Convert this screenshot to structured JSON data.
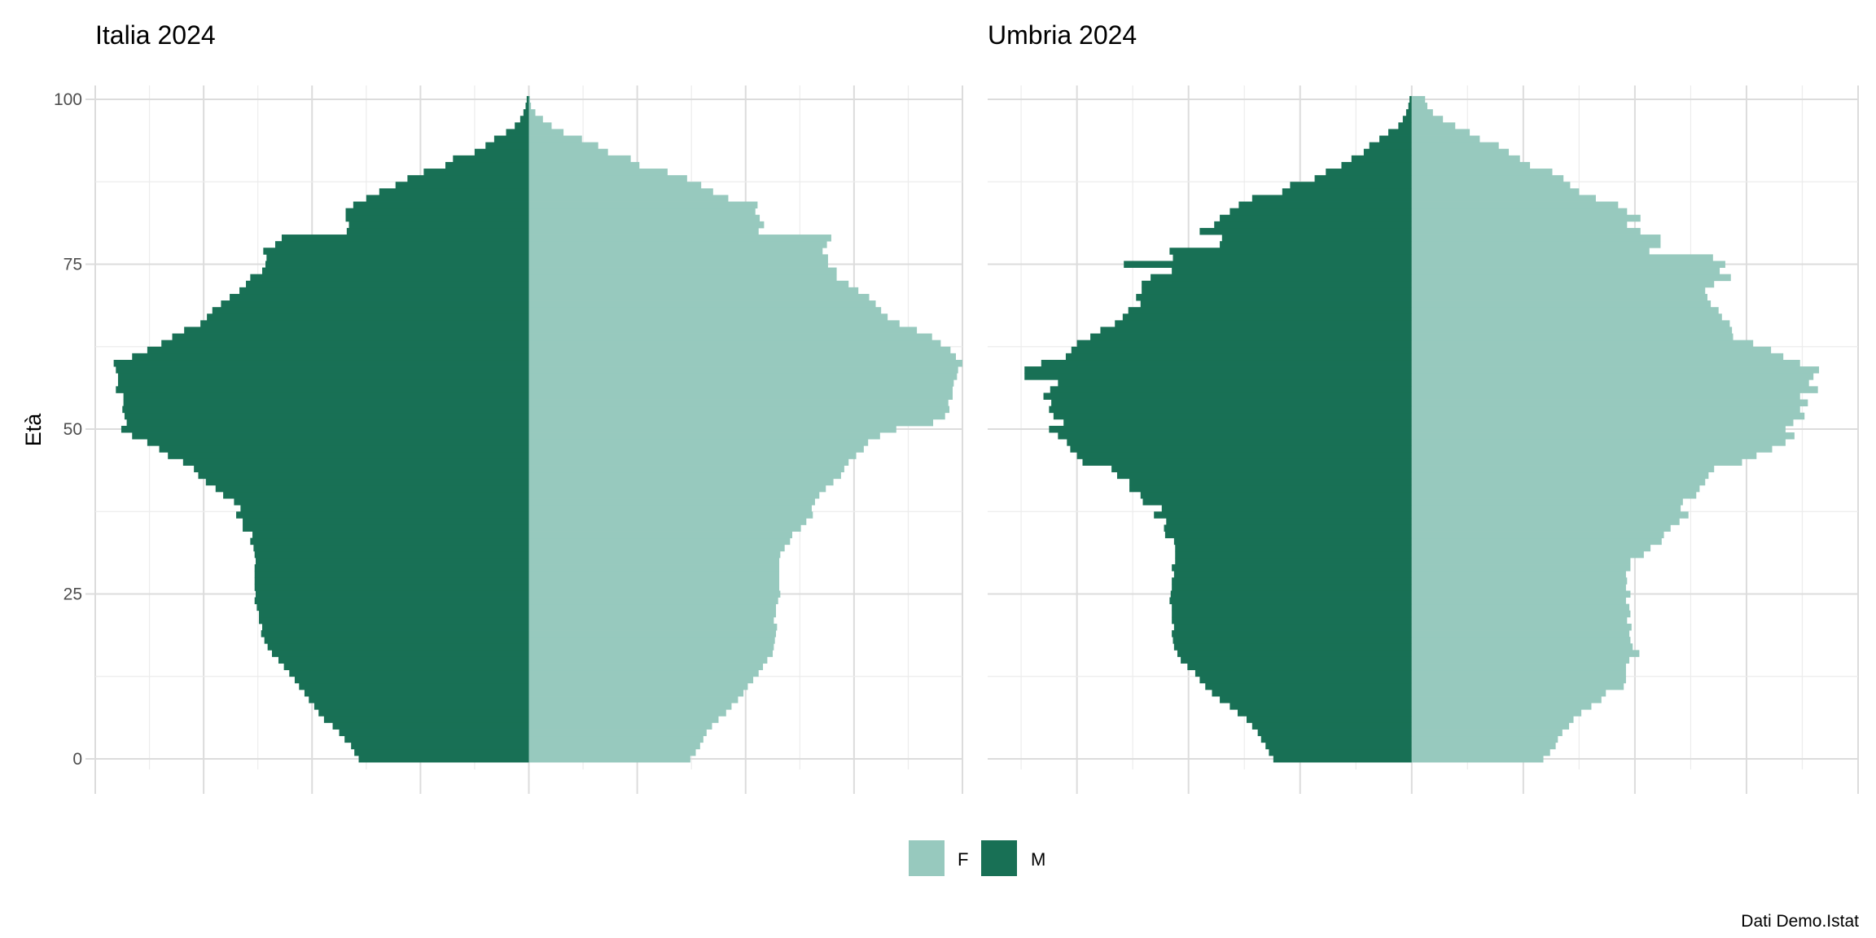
{
  "chart_data": {
    "type": "bar",
    "subtype": "population-pyramid",
    "y_axis_title": "Età",
    "y_ticks": [
      0,
      25,
      50,
      75,
      100
    ],
    "ylim": [
      0,
      100
    ],
    "x_axis_tick_labels_shown": false,
    "grid": true,
    "legend": {
      "placement": "bottom",
      "entries": [
        {
          "label": "F",
          "color": "#97c9be"
        },
        {
          "label": "M",
          "color": "#187055"
        }
      ]
    },
    "caption": "Dati Demo.Istat",
    "value_unit_note": "relative bar length per single year of age (shares of population, left = M, right = F); axis tick labels not printed",
    "panels": [
      {
        "title": "Italia 2024",
        "xlim": [
          -4,
          4
        ],
        "ages": {
          "from": 0,
          "to": 100
        },
        "M": [
          1.57,
          1.61,
          1.64,
          1.7,
          1.75,
          1.81,
          1.89,
          1.94,
          1.98,
          2.03,
          2.07,
          2.12,
          2.16,
          2.21,
          2.26,
          2.31,
          2.37,
          2.41,
          2.44,
          2.47,
          2.46,
          2.49,
          2.49,
          2.51,
          2.53,
          2.52,
          2.53,
          2.53,
          2.53,
          2.53,
          2.52,
          2.53,
          2.54,
          2.57,
          2.55,
          2.64,
          2.64,
          2.7,
          2.66,
          2.72,
          2.82,
          2.89,
          2.98,
          3.05,
          3.09,
          3.19,
          3.33,
          3.41,
          3.52,
          3.66,
          3.76,
          3.71,
          3.73,
          3.75,
          3.74,
          3.74,
          3.81,
          3.79,
          3.79,
          3.81,
          3.83,
          3.66,
          3.52,
          3.39,
          3.29,
          3.18,
          3.03,
          2.97,
          2.92,
          2.84,
          2.76,
          2.67,
          2.61,
          2.57,
          2.46,
          2.43,
          2.42,
          2.45,
          2.34,
          2.28,
          1.68,
          1.66,
          1.69,
          1.69,
          1.62,
          1.5,
          1.38,
          1.23,
          1.12,
          0.97,
          0.77,
          0.7,
          0.5,
          0.4,
          0.32,
          0.21,
          0.13,
          0.08,
          0.05,
          0.03,
          0.02
        ],
        "F": [
          1.49,
          1.54,
          1.58,
          1.61,
          1.64,
          1.69,
          1.75,
          1.82,
          1.87,
          1.93,
          1.98,
          2.02,
          2.07,
          2.12,
          2.16,
          2.2,
          2.25,
          2.26,
          2.27,
          2.28,
          2.29,
          2.26,
          2.28,
          2.28,
          2.3,
          2.32,
          2.31,
          2.31,
          2.31,
          2.31,
          2.31,
          2.32,
          2.36,
          2.41,
          2.43,
          2.51,
          2.56,
          2.62,
          2.61,
          2.64,
          2.68,
          2.74,
          2.81,
          2.88,
          2.91,
          2.95,
          3.02,
          3.09,
          3.13,
          3.24,
          3.39,
          3.73,
          3.84,
          3.88,
          3.87,
          3.91,
          3.91,
          3.92,
          3.95,
          3.96,
          4.0,
          3.94,
          3.89,
          3.8,
          3.72,
          3.58,
          3.42,
          3.31,
          3.25,
          3.2,
          3.14,
          3.04,
          2.95,
          2.84,
          2.84,
          2.76,
          2.76,
          2.71,
          2.75,
          2.79,
          2.12,
          2.17,
          2.13,
          2.09,
          2.11,
          1.84,
          1.7,
          1.59,
          1.46,
          1.28,
          1.02,
          0.94,
          0.73,
          0.64,
          0.49,
          0.32,
          0.21,
          0.13,
          0.06,
          0.02,
          0.01
        ]
      },
      {
        "title": "Umbria 2024",
        "xlim": [
          -3.8,
          4
        ],
        "ages": {
          "from": 0,
          "to": 100
        },
        "M": [
          1.24,
          1.28,
          1.31,
          1.35,
          1.38,
          1.43,
          1.48,
          1.56,
          1.63,
          1.72,
          1.79,
          1.85,
          1.9,
          1.94,
          2.01,
          2.07,
          2.1,
          2.13,
          2.14,
          2.15,
          2.13,
          2.15,
          2.15,
          2.15,
          2.17,
          2.16,
          2.15,
          2.15,
          2.13,
          2.15,
          2.12,
          2.12,
          2.12,
          2.13,
          2.21,
          2.22,
          2.2,
          2.31,
          2.24,
          2.41,
          2.43,
          2.53,
          2.53,
          2.64,
          2.69,
          2.95,
          3.0,
          3.06,
          3.09,
          3.17,
          3.25,
          3.12,
          3.21,
          3.25,
          3.23,
          3.3,
          3.24,
          3.17,
          3.47,
          3.47,
          3.32,
          3.1,
          3.05,
          3.0,
          2.88,
          2.79,
          2.66,
          2.59,
          2.54,
          2.43,
          2.47,
          2.42,
          2.42,
          2.34,
          2.15,
          2.58,
          2.14,
          2.17,
          1.72,
          1.7,
          1.9,
          1.77,
          1.72,
          1.63,
          1.55,
          1.43,
          1.16,
          1.09,
          0.87,
          0.77,
          0.63,
          0.54,
          0.43,
          0.38,
          0.29,
          0.21,
          0.12,
          0.08,
          0.05,
          0.03,
          0.02
        ],
        "F": [
          1.18,
          1.24,
          1.29,
          1.31,
          1.35,
          1.41,
          1.45,
          1.52,
          1.61,
          1.7,
          1.74,
          1.9,
          1.92,
          1.92,
          1.92,
          1.95,
          2.04,
          1.98,
          1.96,
          1.95,
          1.97,
          1.93,
          1.96,
          1.95,
          1.92,
          1.96,
          1.92,
          1.93,
          1.92,
          1.96,
          1.96,
          2.08,
          2.14,
          2.24,
          2.26,
          2.32,
          2.4,
          2.48,
          2.41,
          2.43,
          2.55,
          2.58,
          2.63,
          2.66,
          2.71,
          2.96,
          3.09,
          3.23,
          3.35,
          3.43,
          3.35,
          3.42,
          3.52,
          3.48,
          3.55,
          3.48,
          3.64,
          3.56,
          3.6,
          3.65,
          3.48,
          3.33,
          3.22,
          3.06,
          2.88,
          2.87,
          2.85,
          2.78,
          2.75,
          2.68,
          2.65,
          2.63,
          2.71,
          2.86,
          2.76,
          2.81,
          2.7,
          2.13,
          2.23,
          2.23,
          2.05,
          1.93,
          2.05,
          1.93,
          1.85,
          1.65,
          1.5,
          1.42,
          1.36,
          1.26,
          1.06,
          0.97,
          0.87,
          0.78,
          0.61,
          0.52,
          0.39,
          0.28,
          0.19,
          0.14,
          0.12
        ]
      }
    ]
  }
}
